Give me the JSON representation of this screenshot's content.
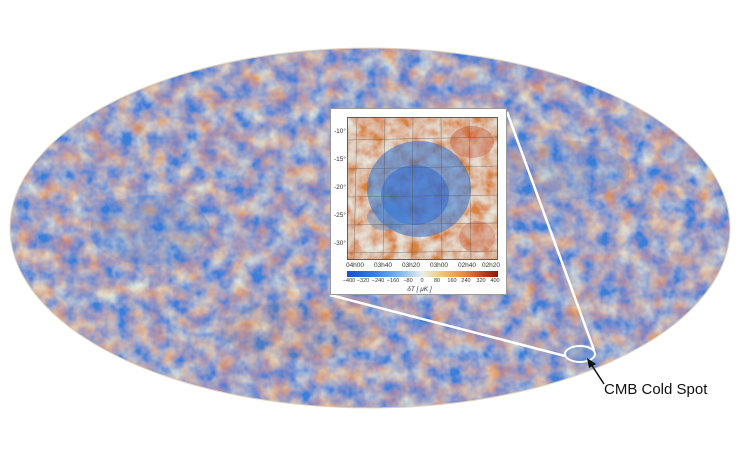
{
  "inset": {
    "dec_ticks": [
      "-10°",
      "-15°",
      "-20°",
      "-25°",
      "-30°"
    ],
    "ra_ticks": [
      "04h00",
      "03h40",
      "03h20",
      "03h00",
      "02h40",
      "02h20"
    ],
    "colorbar_ticks": [
      "−400",
      "−320",
      "−240",
      "−160",
      "−80",
      "0",
      "80",
      "160",
      "240",
      "320",
      "400"
    ],
    "colorbar_unit": "δT [ μK ]"
  },
  "callout": {
    "label": "CMB Cold Spot"
  },
  "colors": {
    "cold": "#2a6fd6",
    "neutral": "#e6ece9",
    "warm": "#e08a3c",
    "hot": "#c0391c"
  }
}
